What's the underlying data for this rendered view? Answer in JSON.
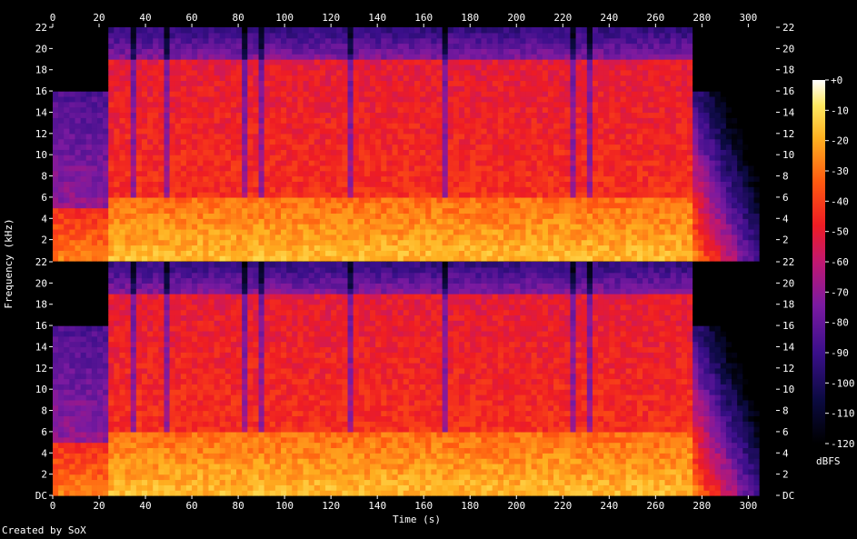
{
  "chart_data": {
    "type": "heatmap",
    "subtype": "spectrogram",
    "channels": 2,
    "xlabel": "Time (s)",
    "ylabel": "Frequency (kHz)",
    "xlim": [
      0,
      312
    ],
    "ylim": [
      0,
      22
    ],
    "x_ticks": [
      "0",
      "20",
      "40",
      "60",
      "80",
      "100",
      "120",
      "140",
      "160",
      "180",
      "200",
      "220",
      "240",
      "260",
      "280",
      "300"
    ],
    "y_ticks_bottom_channel": [
      "DC",
      "2",
      "4",
      "6",
      "8",
      "10",
      "12",
      "14",
      "16",
      "18",
      "20",
      "22"
    ],
    "y_ticks_top_channel": [
      "2",
      "4",
      "6",
      "8",
      "10",
      "12",
      "14",
      "16",
      "18",
      "20",
      "22"
    ],
    "colorbar": {
      "unit": "dBFS",
      "ticks": [
        "+0",
        "-10",
        "-20",
        "-30",
        "-40",
        "-50",
        "-60",
        "-70",
        "-80",
        "-90",
        "-100",
        "-110",
        "-120"
      ],
      "range": [
        -120,
        0
      ]
    },
    "features": {
      "quiet_intro_end_s": 25,
      "intro_lowpass_khz": 16,
      "outro_start_s": 276,
      "outro_lowpass_khz": 16,
      "fade_end_s": 305,
      "dropout_times_s": [
        35,
        50,
        82,
        91,
        128,
        168,
        224,
        232
      ]
    },
    "footer": "Created by SoX"
  }
}
